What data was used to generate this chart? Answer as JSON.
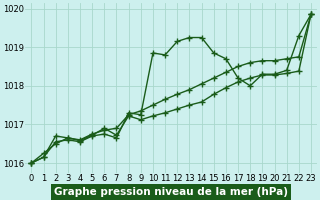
{
  "title": "Graphe pression niveau de la mer (hPa)",
  "bg_color": "#cdf0ee",
  "grid_color": "#a8d8cc",
  "line_color": "#1a5c1a",
  "xlim": [
    -0.5,
    23.5
  ],
  "ylim": [
    1015.75,
    1020.15
  ],
  "yticks": [
    1016,
    1017,
    1018,
    1019,
    1020
  ],
  "xticks": [
    0,
    1,
    2,
    3,
    4,
    5,
    6,
    7,
    8,
    9,
    10,
    11,
    12,
    13,
    14,
    15,
    16,
    17,
    18,
    19,
    20,
    21,
    22,
    23
  ],
  "series1_x": [
    0,
    1,
    2,
    3,
    4,
    5,
    6,
    7,
    8,
    9,
    10,
    11,
    12,
    13,
    14,
    15,
    16,
    17,
    18,
    19,
    20,
    21,
    22,
    23
  ],
  "series1_y": [
    1016.0,
    1016.25,
    1016.5,
    1016.65,
    1016.6,
    1016.75,
    1016.85,
    1016.9,
    1017.25,
    1017.35,
    1017.5,
    1017.65,
    1017.78,
    1017.9,
    1018.05,
    1018.2,
    1018.35,
    1018.5,
    1018.6,
    1018.65,
    1018.65,
    1018.7,
    1018.75,
    1019.85
  ],
  "series2_x": [
    0,
    1,
    2,
    3,
    4,
    5,
    6,
    7,
    8,
    9,
    10,
    11,
    12,
    13,
    14,
    15,
    16,
    17,
    18,
    19,
    20,
    21,
    22,
    23
  ],
  "series2_y": [
    1016.0,
    1016.15,
    1016.55,
    1016.6,
    1016.55,
    1016.7,
    1016.75,
    1016.65,
    1017.3,
    1017.25,
    1018.85,
    1018.8,
    1019.15,
    1019.25,
    1019.25,
    1018.85,
    1018.7,
    1018.2,
    1018.0,
    1018.3,
    1018.3,
    1018.4,
    1019.3,
    1019.85
  ],
  "series3_x": [
    0,
    1,
    2,
    3,
    4,
    5,
    6,
    7,
    8,
    9,
    10,
    11,
    12,
    13,
    14,
    15,
    16,
    17,
    18,
    19,
    20,
    21,
    22,
    23
  ],
  "series3_y": [
    1016.0,
    1016.15,
    1016.7,
    1016.65,
    1016.58,
    1016.72,
    1016.9,
    1016.72,
    1017.22,
    1017.12,
    1017.22,
    1017.3,
    1017.4,
    1017.5,
    1017.58,
    1017.78,
    1017.95,
    1018.1,
    1018.2,
    1018.28,
    1018.28,
    1018.32,
    1018.38,
    1019.85
  ],
  "marker": "+",
  "markersize": 4,
  "linewidth": 1.0,
  "xlabel_fontsize": 7.5,
  "tick_fontsize": 6.0
}
